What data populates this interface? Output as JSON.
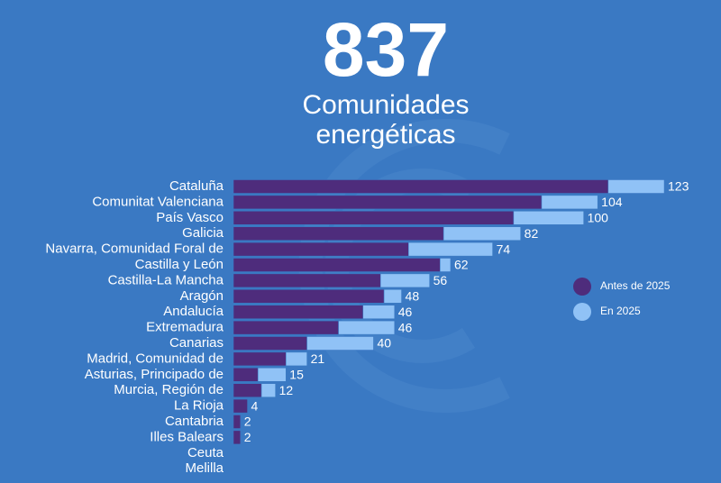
{
  "chart_data": {
    "type": "stacked-barh",
    "title": "837",
    "subtitle": [
      "Comunidades",
      "energéticas"
    ],
    "categories": [
      "Cataluña",
      "Comunitat Valenciana",
      "País Vasco",
      "Galicia",
      "Navarra, Comunidad Foral de",
      "Castilla y León",
      "Castilla-La Mancha",
      "Aragón",
      "Andalucía",
      "Extremadura",
      "Canarias",
      "Madrid, Comunidad de",
      "Asturias, Principado de",
      "Murcia, Región de",
      "La Rioja",
      "Cantabria",
      "Illes Balears",
      "Ceuta",
      "Melilla"
    ],
    "series": [
      {
        "name": "Antes de 2025",
        "color": "#4e2c7c",
        "values": [
          107,
          88,
          80,
          60,
          50,
          59,
          42,
          43,
          37,
          30,
          21,
          15,
          7,
          8,
          4,
          2,
          2,
          0,
          0
        ]
      },
      {
        "name": "En 2025",
        "color": "#90c2f6",
        "values": [
          16,
          16,
          20,
          22,
          24,
          3,
          14,
          5,
          9,
          16,
          19,
          6,
          8,
          4,
          0,
          0,
          0,
          0,
          0
        ]
      }
    ],
    "totals": [
      123,
      104,
      100,
      82,
      74,
      62,
      56,
      48,
      46,
      46,
      40,
      21,
      15,
      12,
      4,
      2,
      2,
      null,
      null
    ],
    "legend": "right"
  }
}
